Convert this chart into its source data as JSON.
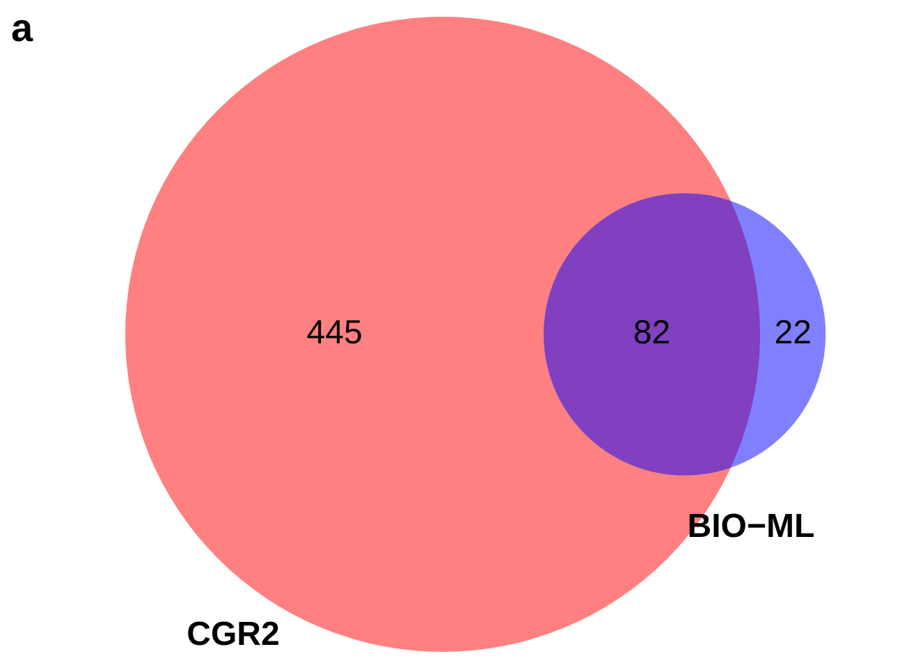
{
  "chart_data": {
    "type": "other",
    "title": "a",
    "categories": [
      null,
      null,
      null
    ],
    "values": [
      445,
      82,
      22
    ],
    "colors": [
      "#ff8080",
      "#8040c0",
      "#8080ff"
    ],
    "data_labels": true,
    "annotations": [
      "CGR2",
      "BIO−ML"
    ]
  }
}
